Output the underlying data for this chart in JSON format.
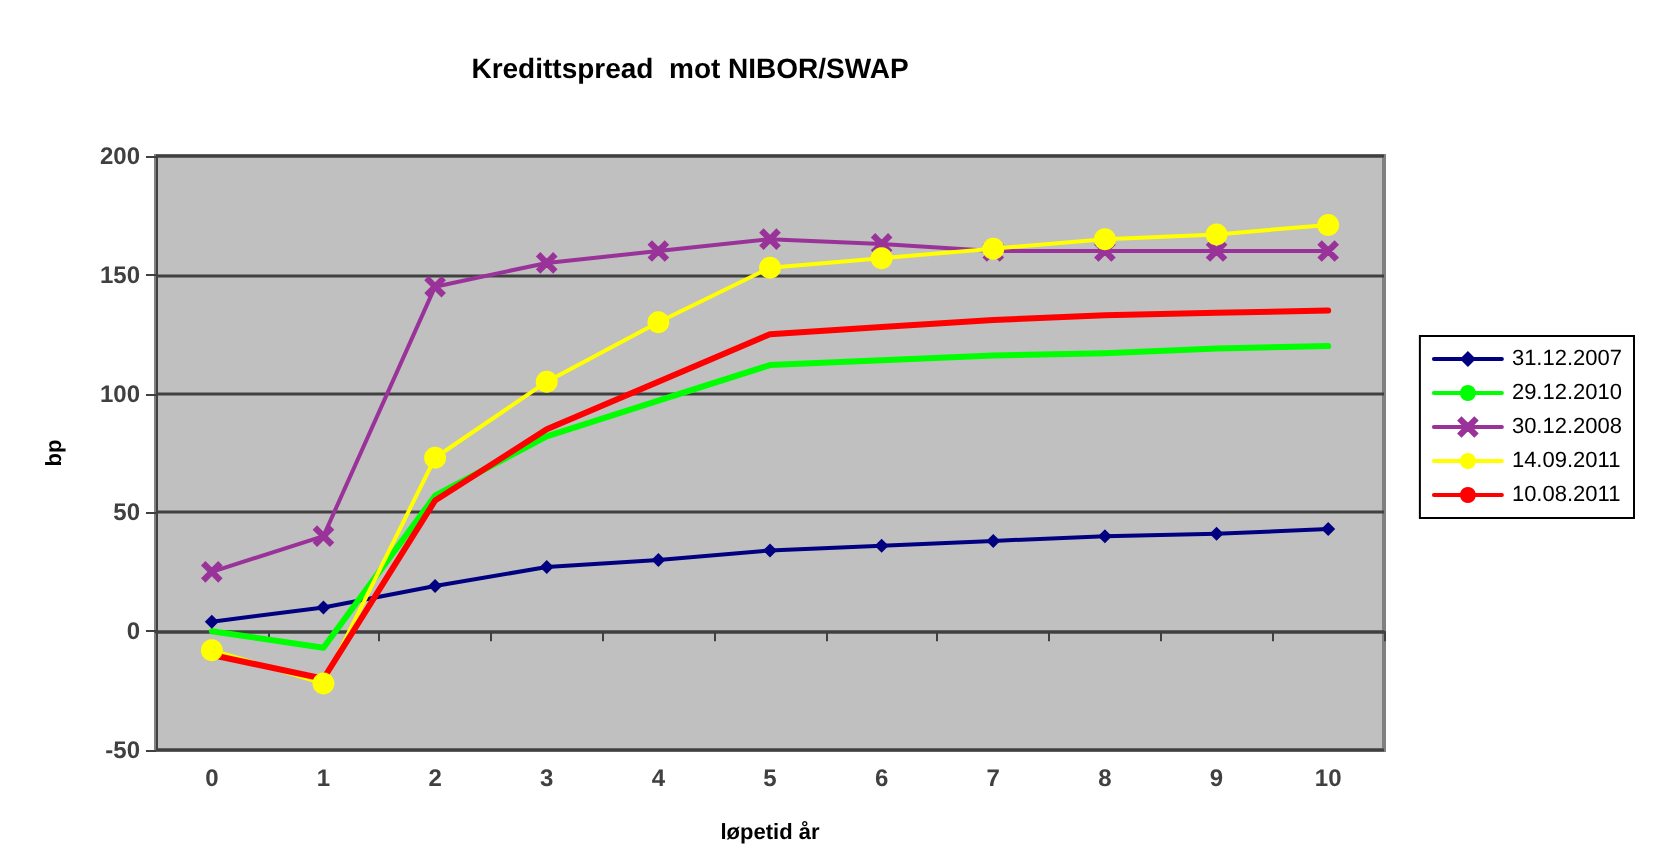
{
  "chart_data": {
    "type": "line",
    "title": "Kredittspread  mot NIBOR/SWAP",
    "xlabel": "løpetid år",
    "ylabel": "bp",
    "categories": [
      "0",
      "1",
      "2",
      "3",
      "4",
      "5",
      "6",
      "7",
      "8",
      "9",
      "10"
    ],
    "series": [
      {
        "name": "31.12.2007",
        "color": "#000080",
        "marker": "diamond",
        "values": [
          4,
          10,
          19,
          27,
          30,
          34,
          36,
          38,
          40,
          41,
          43
        ]
      },
      {
        "name": "29.12.2010",
        "color": "#00ff00",
        "marker": "none",
        "values": [
          0,
          -7,
          57,
          82,
          97,
          112,
          114,
          116,
          117,
          119,
          120
        ]
      },
      {
        "name": "30.12.2008",
        "color": "#993399",
        "marker": "cross",
        "values": [
          25,
          40,
          145,
          155,
          160,
          165,
          163,
          160,
          160,
          160,
          160
        ]
      },
      {
        "name": "14.09.2011",
        "color": "#ffff00",
        "marker": "circle",
        "values": [
          -8,
          -22,
          73,
          105,
          130,
          153,
          157,
          161,
          165,
          167,
          171
        ]
      },
      {
        "name": "10.08.2011",
        "color": "#ff0000",
        "marker": "none",
        "values": [
          -10,
          -20,
          55,
          85,
          105,
          125,
          128,
          131,
          133,
          134,
          135
        ]
      }
    ],
    "ylim": [
      -50,
      200
    ],
    "yticks": [
      -50,
      0,
      50,
      100,
      150,
      200
    ],
    "grid": "y",
    "legend": "right"
  }
}
